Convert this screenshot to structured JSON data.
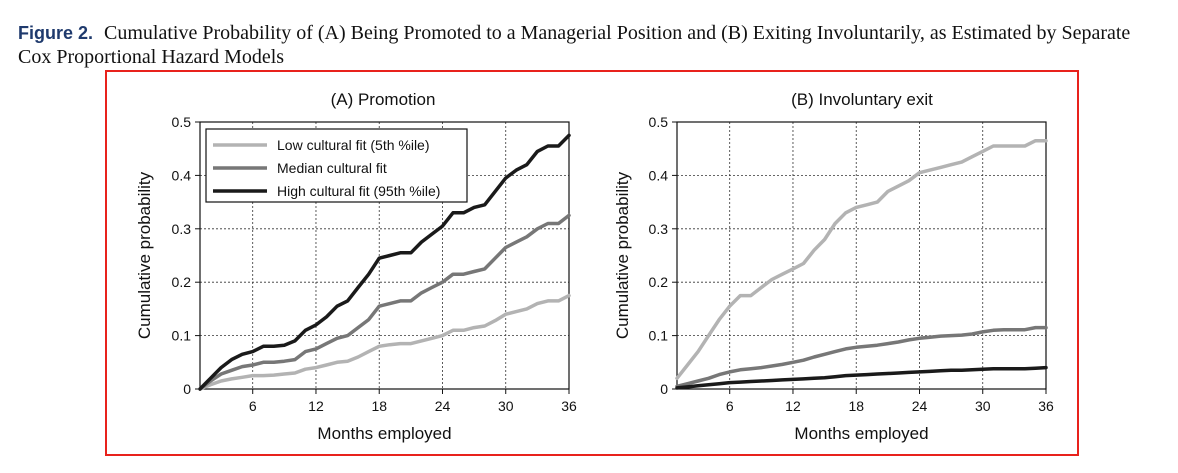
{
  "caption": {
    "label": "Figure 2.",
    "text": "Cumulative Probability of (A) Being Promoted to a Managerial Position and (B) Exiting Involuntarily, as Estimated by Separate Cox Proportional Hazard Models"
  },
  "chart_data": [
    {
      "type": "line",
      "title": "(A) Promotion",
      "xlabel": "Months employed",
      "ylabel": "Cumulative probability",
      "xlim": [
        1,
        36
      ],
      "ylim": [
        0,
        0.5
      ],
      "xticks": [
        "6",
        "12",
        "18",
        "24",
        "30",
        "36"
      ],
      "yticks": [
        "0",
        "0.1",
        "0.2",
        "0.3",
        "0.4",
        "0.5"
      ],
      "grid": true,
      "legend": "top-left",
      "series": [
        {
          "name": "Low cultural fit (5th %ile)",
          "color": "#b3b3b3",
          "x": [
            1,
            2,
            3,
            4,
            5,
            6,
            7,
            8,
            9,
            10,
            11,
            12,
            13,
            14,
            15,
            16,
            17,
            18,
            19,
            20,
            21,
            22,
            23,
            24,
            25,
            26,
            27,
            28,
            29,
            30,
            31,
            32,
            33,
            34,
            35,
            36
          ],
          "y": [
            0.0,
            0.008,
            0.015,
            0.019,
            0.022,
            0.025,
            0.025,
            0.026,
            0.028,
            0.03,
            0.037,
            0.04,
            0.045,
            0.05,
            0.052,
            0.06,
            0.07,
            0.08,
            0.083,
            0.085,
            0.085,
            0.09,
            0.095,
            0.1,
            0.11,
            0.11,
            0.115,
            0.118,
            0.128,
            0.14,
            0.145,
            0.15,
            0.16,
            0.165,
            0.165,
            0.175
          ]
        },
        {
          "name": "Median cultural fit",
          "color": "#777777",
          "x": [
            1,
            2,
            3,
            4,
            5,
            6,
            7,
            8,
            9,
            10,
            11,
            12,
            13,
            14,
            15,
            16,
            17,
            18,
            19,
            20,
            21,
            22,
            23,
            24,
            25,
            26,
            27,
            28,
            29,
            30,
            31,
            32,
            33,
            34,
            35,
            36
          ],
          "y": [
            0.0,
            0.015,
            0.028,
            0.035,
            0.042,
            0.045,
            0.05,
            0.05,
            0.052,
            0.055,
            0.07,
            0.075,
            0.085,
            0.095,
            0.1,
            0.115,
            0.13,
            0.155,
            0.16,
            0.165,
            0.165,
            0.18,
            0.19,
            0.2,
            0.215,
            0.215,
            0.22,
            0.225,
            0.245,
            0.265,
            0.275,
            0.285,
            0.3,
            0.31,
            0.31,
            0.325
          ]
        },
        {
          "name": "High cultural fit (95th %ile)",
          "color": "#1a1a1a",
          "x": [
            1,
            2,
            3,
            4,
            5,
            6,
            7,
            8,
            9,
            10,
            11,
            12,
            13,
            14,
            15,
            16,
            17,
            18,
            19,
            20,
            21,
            22,
            23,
            24,
            25,
            26,
            27,
            28,
            29,
            30,
            31,
            32,
            33,
            34,
            35,
            36
          ],
          "y": [
            0.0,
            0.02,
            0.04,
            0.055,
            0.065,
            0.07,
            0.08,
            0.08,
            0.082,
            0.09,
            0.11,
            0.12,
            0.135,
            0.155,
            0.165,
            0.19,
            0.215,
            0.245,
            0.25,
            0.255,
            0.255,
            0.275,
            0.29,
            0.305,
            0.33,
            0.33,
            0.34,
            0.345,
            0.37,
            0.395,
            0.41,
            0.42,
            0.445,
            0.455,
            0.455,
            0.475
          ]
        }
      ]
    },
    {
      "type": "line",
      "title": "(B) Involuntary exit",
      "xlabel": "Months employed",
      "ylabel": "Cumulative probability",
      "xlim": [
        1,
        36
      ],
      "ylim": [
        0,
        0.5
      ],
      "xticks": [
        "6",
        "12",
        "18",
        "24",
        "30",
        "36"
      ],
      "yticks": [
        "0",
        "0.1",
        "0.2",
        "0.3",
        "0.4",
        "0.5"
      ],
      "grid": true,
      "series": [
        {
          "color": "#b3b3b3",
          "x": [
            1,
            2,
            3,
            4,
            5,
            6,
            7,
            8,
            9,
            10,
            11,
            12,
            13,
            14,
            15,
            16,
            17,
            18,
            19,
            20,
            21,
            22,
            23,
            24,
            25,
            26,
            27,
            28,
            29,
            30,
            31,
            32,
            33,
            34,
            35,
            36
          ],
          "y": [
            0.02,
            0.045,
            0.07,
            0.1,
            0.13,
            0.155,
            0.175,
            0.175,
            0.19,
            0.205,
            0.215,
            0.225,
            0.235,
            0.26,
            0.28,
            0.31,
            0.33,
            0.34,
            0.345,
            0.35,
            0.37,
            0.38,
            0.39,
            0.405,
            0.41,
            0.415,
            0.42,
            0.425,
            0.435,
            0.445,
            0.455,
            0.455,
            0.455,
            0.455,
            0.465,
            0.465
          ]
        },
        {
          "color": "#777777",
          "x": [
            1,
            2,
            3,
            4,
            5,
            6,
            7,
            8,
            9,
            10,
            11,
            12,
            13,
            14,
            15,
            16,
            17,
            18,
            19,
            20,
            21,
            22,
            23,
            24,
            25,
            26,
            27,
            28,
            29,
            30,
            31,
            32,
            33,
            34,
            35,
            36
          ],
          "y": [
            0.005,
            0.01,
            0.015,
            0.02,
            0.027,
            0.032,
            0.036,
            0.038,
            0.04,
            0.043,
            0.046,
            0.05,
            0.054,
            0.06,
            0.065,
            0.07,
            0.075,
            0.078,
            0.08,
            0.082,
            0.085,
            0.088,
            0.092,
            0.095,
            0.097,
            0.099,
            0.1,
            0.101,
            0.103,
            0.107,
            0.11,
            0.111,
            0.111,
            0.111,
            0.115,
            0.115
          ]
        },
        {
          "color": "#1a1a1a",
          "x": [
            1,
            2,
            3,
            4,
            5,
            6,
            7,
            8,
            9,
            10,
            11,
            12,
            13,
            14,
            15,
            16,
            17,
            18,
            19,
            20,
            21,
            22,
            23,
            24,
            25,
            26,
            27,
            28,
            29,
            30,
            31,
            32,
            33,
            34,
            35,
            36
          ],
          "y": [
            0.002,
            0.004,
            0.006,
            0.008,
            0.01,
            0.012,
            0.013,
            0.014,
            0.015,
            0.016,
            0.017,
            0.018,
            0.019,
            0.02,
            0.021,
            0.023,
            0.025,
            0.026,
            0.027,
            0.028,
            0.029,
            0.03,
            0.031,
            0.032,
            0.033,
            0.034,
            0.035,
            0.035,
            0.036,
            0.037,
            0.038,
            0.038,
            0.038,
            0.038,
            0.039,
            0.04
          ]
        }
      ]
    }
  ]
}
